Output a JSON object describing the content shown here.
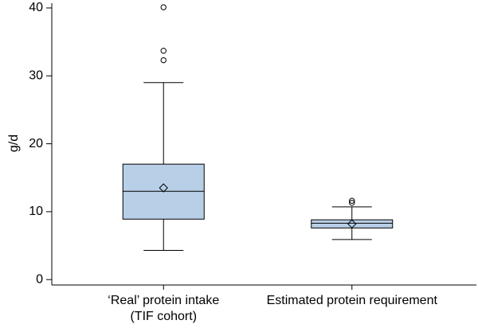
{
  "chart_data": {
    "type": "box",
    "y_label": "g/d",
    "categories": [
      "‘Real’ protein intake\n(TIF cohort)",
      "Estimated protein requirement"
    ],
    "color": "#b8cfe8",
    "boxes": [
      {
        "whisker_low": 4.3,
        "q1": 8.9,
        "median": 13,
        "q3": 17,
        "whisker_high": 29,
        "mean": 13.5,
        "outliers": [
          40.1,
          33.7,
          32.3
        ]
      },
      {
        "whisker_low": 5.9,
        "q1": 7.6,
        "median": 8.3,
        "q3": 8.8,
        "whisker_high": 10.7,
        "mean": 8.2,
        "outliers": [
          11.6,
          11.3
        ]
      }
    ],
    "ylim": [
      -0.8,
      40.7
    ],
    "yticks": [
      0,
      10,
      20,
      30,
      40
    ]
  }
}
